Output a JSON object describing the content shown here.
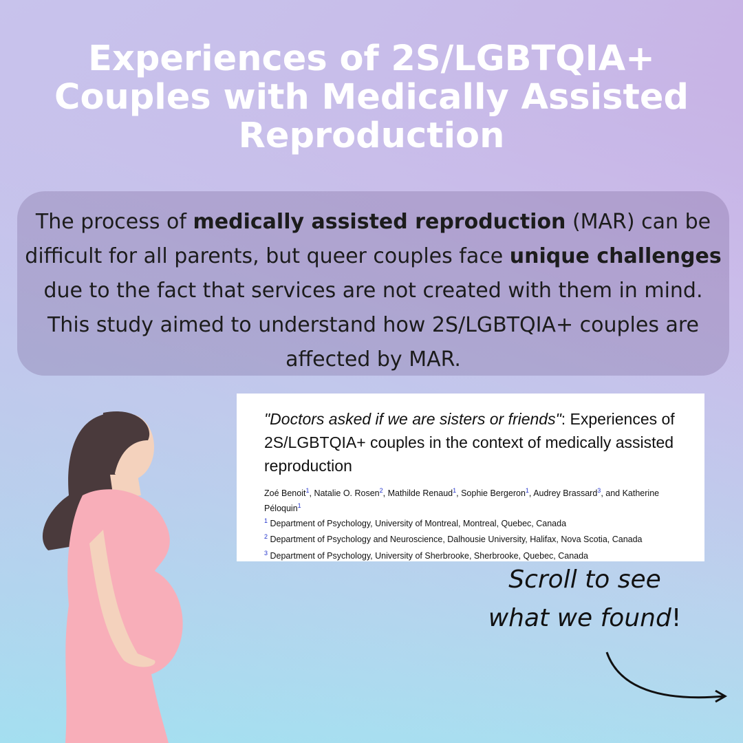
{
  "title": "Experiences of 2S/LGBTQIA+ Couples with Medically Assisted Reproduction",
  "intro": [
    "The process of ",
    "medically assisted reproduction",
    " (MAR) can be difficult for all parents, but queer couples face ",
    "unique challenges",
    " due to the fact that services are not created with them in mind. This study aimed to understand how 2S/LGBTQIA+ couples are affected by MAR."
  ],
  "paper": {
    "title_quote": "\"Doctors asked if we are sisters or friends\"",
    "title_rest": ": Experiences of 2S/LGBTQIA+ couples in the context of medically assisted reproduction",
    "authors": [
      {
        "name": "Zoé Benoit",
        "sup": "1",
        "sep": ", "
      },
      {
        "name": "Natalie O. Rosen",
        "sup": "2",
        "sep": ", "
      },
      {
        "name": "Mathilde Renaud",
        "sup": "1",
        "sep": ", "
      },
      {
        "name": "Sophie Bergeron",
        "sup": "1",
        "sep": ", "
      },
      {
        "name": "Audrey Brassard",
        "sup": "3",
        "sep": ", and "
      },
      {
        "name": "Katherine Péloquin",
        "sup": "1",
        "sep": ""
      }
    ],
    "affiliations": [
      {
        "num": "1",
        "text": "Department of Psychology, University of Montreal, Montreal, Quebec, Canada"
      },
      {
        "num": "2",
        "text": "Department of Psychology and Neuroscience, Dalhousie University, Halifax, Nova Scotia, Canada"
      },
      {
        "num": "3",
        "text": "Department of Psychology, University of Sherbrooke, Sherbrooke, Quebec, Canada"
      }
    ]
  },
  "scroll": {
    "line1": "Scroll to see",
    "line2": "what we found",
    "mark": "!"
  }
}
